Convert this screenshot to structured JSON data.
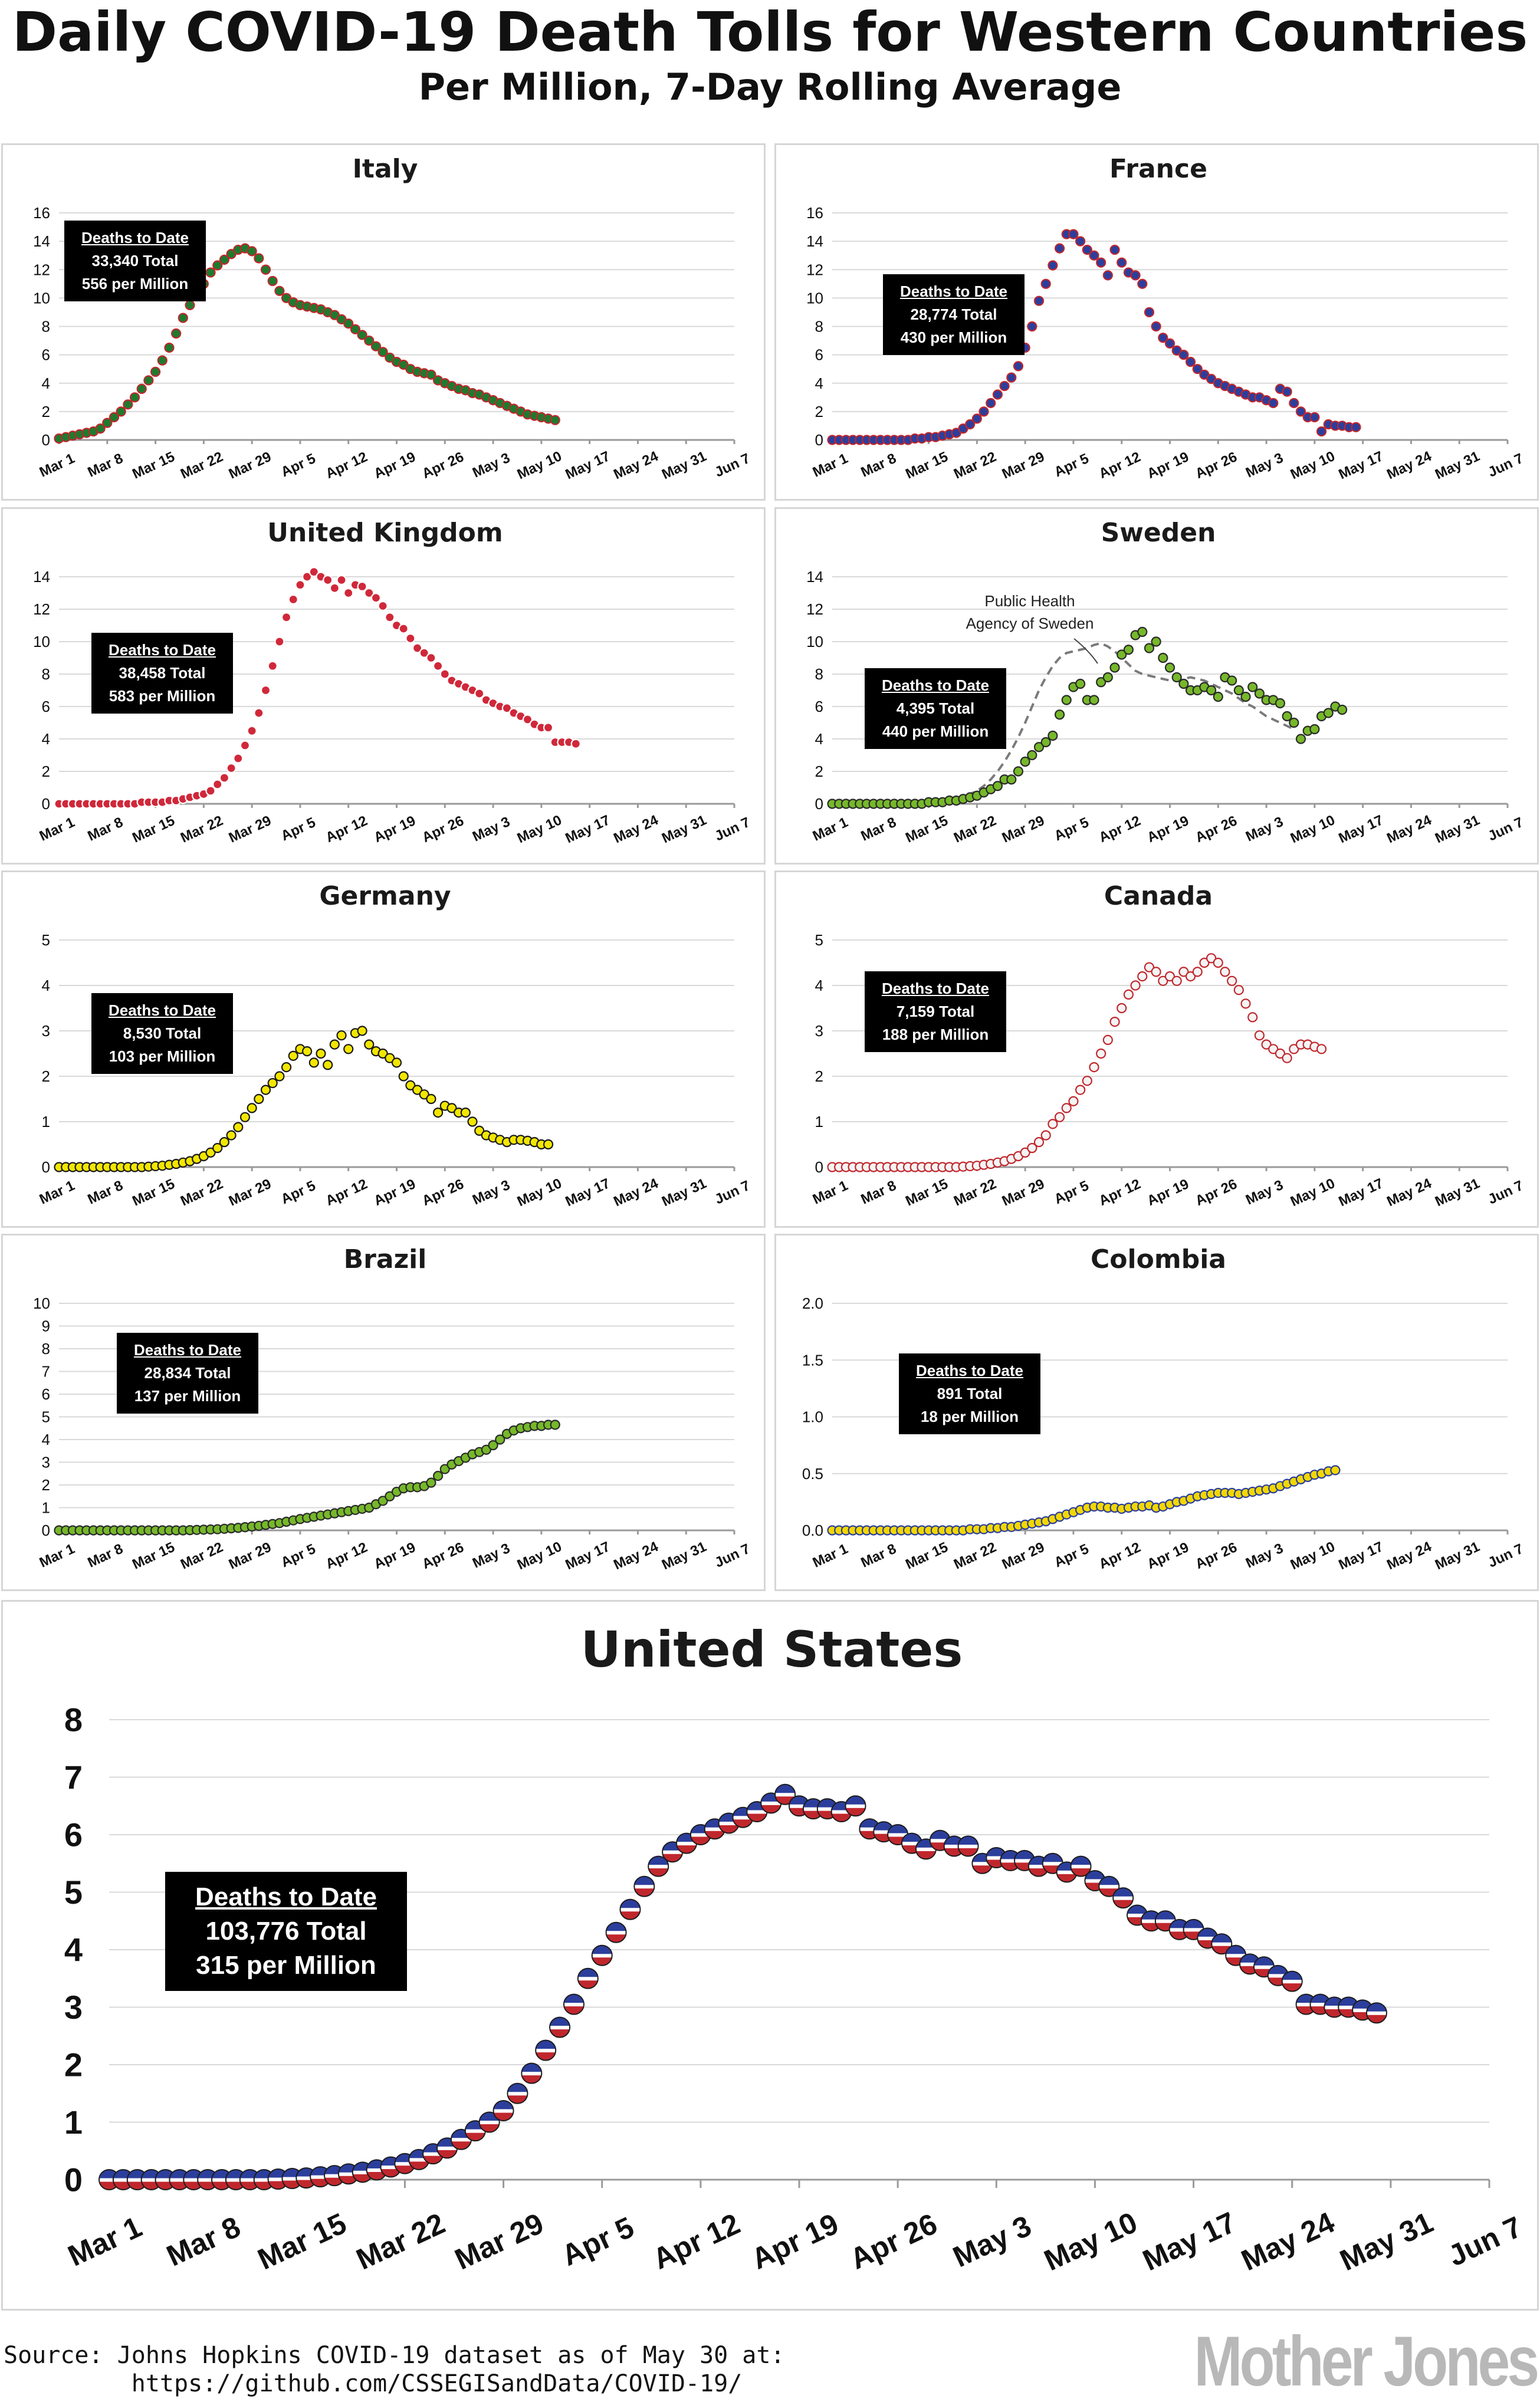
{
  "title": "Daily COVID-19 Death Tolls for Western Countries",
  "subtitle": "Per Million, 7-Day Rolling Average",
  "source_line1": "Source: Johns Hopkins COVID-19 dataset as of May 30 at:",
  "source_line2": "https://github.com/CSSEGISandData/COVID-19/",
  "logo": "Mother Jones",
  "x_tick_labels": [
    "Mar 1",
    "Mar 8",
    "Mar 15",
    "Mar 22",
    "Mar 29",
    "Apr 5",
    "Apr 12",
    "Apr 19",
    "Apr 26",
    "May 3",
    "May 10",
    "May 17",
    "May 24",
    "May 31",
    "Jun 7"
  ],
  "chart_data": [
    {
      "type": "scatter",
      "country": "Italy",
      "title": "Italy",
      "ylim": [
        0,
        16
      ],
      "yticks": [
        0,
        2,
        4,
        6,
        8,
        10,
        12,
        14,
        16
      ],
      "stats_heading": "Deaths to Date",
      "stats_total": "33,340 Total",
      "stats_per_million": "556 per Million",
      "colors": {
        "fill": "#1e7a2e",
        "edge": "#c0272d"
      },
      "x_start": "Mar 1",
      "day_step": 1,
      "series_values": [
        0.1,
        0.2,
        0.3,
        0.4,
        0.5,
        0.6,
        0.8,
        1.2,
        1.6,
        2.0,
        2.5,
        3.0,
        3.6,
        4.2,
        4.8,
        5.6,
        6.5,
        7.5,
        8.6,
        9.5,
        10.3,
        11.0,
        11.8,
        12.3,
        12.7,
        13.1,
        13.4,
        13.5,
        13.3,
        12.8,
        12.0,
        11.2,
        10.5,
        10.0,
        9.7,
        9.5,
        9.4,
        9.3,
        9.2,
        9.0,
        8.8,
        8.5,
        8.2,
        7.8,
        7.4,
        7.0,
        6.6,
        6.2,
        5.8,
        5.5,
        5.3,
        5.0,
        4.8,
        4.7,
        4.6,
        4.2,
        4.0,
        3.8,
        3.6,
        3.5,
        3.3,
        3.2,
        3.0,
        2.8,
        2.6,
        2.4,
        2.2,
        2.0,
        1.8,
        1.7,
        1.6,
        1.5,
        1.4
      ]
    },
    {
      "type": "scatter",
      "country": "France",
      "title": "France",
      "ylim": [
        0,
        16
      ],
      "yticks": [
        0,
        2,
        4,
        6,
        8,
        10,
        12,
        14,
        16
      ],
      "stats_heading": "Deaths to Date",
      "stats_total": "28,774 Total",
      "stats_per_million": "430 per Million",
      "colors": {
        "fill": "#2c3e9c",
        "edge": "#c0272d"
      },
      "x_start": "Mar 1",
      "day_step": 1,
      "series_values": [
        0,
        0,
        0,
        0,
        0,
        0,
        0,
        0,
        0,
        0,
        0,
        0,
        0.1,
        0.1,
        0.2,
        0.2,
        0.3,
        0.4,
        0.5,
        0.8,
        1.1,
        1.5,
        2.0,
        2.6,
        3.2,
        3.8,
        4.4,
        5.2,
        6.5,
        8.0,
        9.8,
        11.0,
        12.3,
        13.5,
        14.5,
        14.5,
        14.0,
        13.4,
        13.0,
        12.5,
        11.6,
        13.4,
        12.5,
        11.8,
        11.6,
        11.0,
        9.0,
        8.0,
        7.2,
        6.8,
        6.3,
        6.0,
        5.5,
        5.0,
        4.6,
        4.3,
        4.0,
        3.8,
        3.6,
        3.4,
        3.2,
        3.0,
        3.0,
        2.8,
        2.6,
        3.6,
        3.4,
        2.6,
        2.0,
        1.6,
        1.6,
        0.6,
        1.1,
        1.0,
        1.0,
        0.9,
        0.9
      ]
    },
    {
      "type": "scatter",
      "country": "United Kingdom",
      "title": "United Kingdom",
      "ylim": [
        0,
        14
      ],
      "yticks": [
        0,
        2,
        4,
        6,
        8,
        10,
        12,
        14
      ],
      "stats_heading": "Deaths to Date",
      "stats_total": "38,458 Total",
      "stats_per_million": "583 per Million",
      "colors": {
        "fill": "#d0283a",
        "edge": "#ffffff"
      },
      "x_start": "Mar 1",
      "day_step": 1,
      "series_values": [
        0,
        0,
        0,
        0,
        0,
        0,
        0,
        0,
        0,
        0,
        0,
        0,
        0.1,
        0.1,
        0.1,
        0.1,
        0.2,
        0.2,
        0.3,
        0.4,
        0.5,
        0.6,
        0.8,
        1.2,
        1.6,
        2.2,
        2.8,
        3.6,
        4.5,
        5.6,
        7.0,
        8.5,
        10.0,
        11.5,
        12.6,
        13.5,
        14.0,
        14.3,
        14.0,
        13.8,
        13.3,
        13.8,
        13.0,
        13.5,
        13.4,
        13.0,
        12.7,
        12.2,
        11.5,
        11.0,
        10.8,
        10.2,
        9.6,
        9.3,
        9.0,
        8.5,
        8.0,
        7.6,
        7.4,
        7.2,
        7.0,
        6.8,
        6.4,
        6.2,
        6.0,
        5.9,
        5.6,
        5.4,
        5.2,
        4.9,
        4.7,
        4.7,
        3.8,
        3.8,
        3.8,
        3.7
      ]
    },
    {
      "type": "scatter",
      "country": "Sweden",
      "title": "Sweden",
      "ylim": [
        0,
        14
      ],
      "yticks": [
        0,
        2,
        4,
        6,
        8,
        10,
        12,
        14
      ],
      "stats_heading": "Deaths to Date",
      "stats_total": "4,395 Total",
      "stats_per_million": "440 per Million",
      "annotation": "Public Health Agency of Sweden",
      "annotation_lines": [
        "Public Health",
        "Agency of Sweden"
      ],
      "colors": {
        "fill": "#76b82a",
        "edge": "#2a2a2a",
        "line": "#7a7a7a"
      },
      "x_start": "Mar 1",
      "day_step": 1,
      "series_values": [
        0,
        0,
        0,
        0,
        0,
        0,
        0,
        0,
        0,
        0,
        0,
        0,
        0,
        0,
        0.1,
        0.1,
        0.1,
        0.2,
        0.2,
        0.3,
        0.4,
        0.5,
        0.7,
        0.9,
        1.1,
        1.5,
        1.5,
        2.0,
        2.6,
        3.0,
        3.5,
        3.8,
        4.2,
        5.5,
        6.4,
        7.2,
        7.4,
        6.4,
        6.4,
        7.5,
        7.8,
        8.4,
        9.2,
        9.5,
        10.4,
        10.6,
        9.6,
        10.0,
        9.0,
        8.4,
        7.8,
        7.4,
        7.0,
        7.0,
        7.2,
        7.0,
        6.6,
        7.8,
        7.6,
        7.0,
        6.6,
        7.2,
        6.8,
        6.4,
        6.4,
        6.2,
        5.4,
        5.0,
        4.0,
        4.5,
        4.6,
        5.4,
        5.6,
        6.0,
        5.8
      ],
      "line_values": [
        0,
        0,
        0,
        0,
        0,
        0,
        0,
        0,
        0,
        0,
        0,
        0,
        0,
        0,
        0,
        0.1,
        0.1,
        0.2,
        0.3,
        0.4,
        0.6,
        0.8,
        1.1,
        1.5,
        2.0,
        2.6,
        3.3,
        4.1,
        5.0,
        6.0,
        7.0,
        7.8,
        8.5,
        9.0,
        9.3,
        9.4,
        9.5,
        9.6,
        9.8,
        9.9,
        9.7,
        9.4,
        9.0,
        8.6,
        8.2,
        8.0,
        7.9,
        7.8,
        7.7,
        7.6,
        7.6,
        7.7,
        7.8,
        7.7,
        7.6,
        7.4,
        7.2,
        7.0,
        6.8,
        6.5,
        6.2,
        6.0,
        5.7,
        5.4,
        5.2,
        5.0,
        4.8,
        4.6
      ]
    },
    {
      "type": "scatter",
      "country": "Germany",
      "title": "Germany",
      "ylim": [
        0,
        5
      ],
      "yticks": [
        0,
        1,
        2,
        3,
        4,
        5
      ],
      "stats_heading": "Deaths to Date",
      "stats_total": "8,530 Total",
      "stats_per_million": "103 per Million",
      "colors": {
        "fill": "#f2e600",
        "edge": "#1a1a1a"
      },
      "x_start": "Mar 1",
      "day_step": 1,
      "series_values": [
        0,
        0,
        0,
        0,
        0,
        0,
        0,
        0,
        0,
        0,
        0,
        0,
        0,
        0.01,
        0.02,
        0.03,
        0.05,
        0.07,
        0.1,
        0.13,
        0.18,
        0.24,
        0.32,
        0.42,
        0.55,
        0.7,
        0.88,
        1.1,
        1.3,
        1.5,
        1.7,
        1.85,
        2.0,
        2.2,
        2.45,
        2.6,
        2.55,
        2.3,
        2.5,
        2.25,
        2.7,
        2.9,
        2.6,
        2.95,
        3.0,
        2.7,
        2.55,
        2.5,
        2.4,
        2.3,
        2.0,
        1.8,
        1.7,
        1.6,
        1.5,
        1.2,
        1.35,
        1.3,
        1.2,
        1.2,
        1.0,
        0.8,
        0.7,
        0.65,
        0.6,
        0.55,
        0.6,
        0.6,
        0.58,
        0.55,
        0.5,
        0.5
      ]
    },
    {
      "type": "scatter",
      "country": "Canada",
      "title": "Canada",
      "ylim": [
        0,
        5
      ],
      "yticks": [
        0,
        1,
        2,
        3,
        4,
        5
      ],
      "stats_heading": "Deaths to Date",
      "stats_total": "7,159 Total",
      "stats_per_million": "188 per Million",
      "colors": {
        "fill": "#f4f4f4",
        "edge": "#c0272d"
      },
      "x_start": "Mar 1",
      "day_step": 1,
      "series_values": [
        0,
        0,
        0,
        0,
        0,
        0,
        0,
        0,
        0,
        0,
        0,
        0,
        0,
        0,
        0,
        0,
        0,
        0,
        0,
        0.01,
        0.02,
        0.03,
        0.05,
        0.07,
        0.1,
        0.13,
        0.18,
        0.24,
        0.32,
        0.42,
        0.55,
        0.7,
        0.95,
        1.1,
        1.3,
        1.45,
        1.7,
        1.9,
        2.2,
        2.5,
        2.8,
        3.2,
        3.5,
        3.8,
        4.0,
        4.2,
        4.4,
        4.3,
        4.1,
        4.2,
        4.1,
        4.3,
        4.2,
        4.3,
        4.5,
        4.6,
        4.5,
        4.3,
        4.1,
        3.9,
        3.6,
        3.3,
        2.9,
        2.7,
        2.6,
        2.5,
        2.4,
        2.6,
        2.7,
        2.7,
        2.65,
        2.6
      ]
    },
    {
      "type": "scatter",
      "country": "Brazil",
      "title": "Brazil",
      "ylim": [
        0,
        10
      ],
      "yticks": [
        0,
        1,
        2,
        3,
        4,
        5,
        6,
        7,
        8,
        9,
        10
      ],
      "stats_heading": "Deaths to Date",
      "stats_total": "28,834 Total",
      "stats_per_million": "137 per Million",
      "colors": {
        "fill": "#76b82a",
        "edge": "#2a2a2a"
      },
      "x_start": "Mar 1",
      "day_step": 1,
      "series_values": [
        0,
        0,
        0,
        0,
        0,
        0,
        0,
        0,
        0,
        0,
        0,
        0,
        0,
        0,
        0,
        0,
        0,
        0,
        0,
        0.01,
        0.02,
        0.03,
        0.04,
        0.05,
        0.07,
        0.09,
        0.11,
        0.14,
        0.17,
        0.2,
        0.24,
        0.28,
        0.32,
        0.38,
        0.44,
        0.5,
        0.55,
        0.6,
        0.65,
        0.7,
        0.75,
        0.8,
        0.85,
        0.9,
        0.95,
        1.0,
        1.15,
        1.3,
        1.5,
        1.7,
        1.85,
        1.9,
        1.9,
        1.95,
        2.1,
        2.4,
        2.7,
        2.9,
        3.05,
        3.2,
        3.35,
        3.45,
        3.55,
        3.75,
        4.0,
        4.25,
        4.4,
        4.5,
        4.55,
        4.6,
        4.6,
        4.65,
        4.65
      ]
    },
    {
      "type": "scatter",
      "country": "Colombia",
      "title": "Colombia",
      "ylim": [
        0,
        2
      ],
      "yticks": [
        0.0,
        0.5,
        1.0,
        1.5,
        2.0
      ],
      "stats_heading": "Deaths to Date",
      "stats_total": "891 Total",
      "stats_per_million": "18 per Million",
      "colors": {
        "fill": "#f2d700",
        "edge": "#2c3e9c",
        "line": "#c0272d"
      },
      "x_start": "Mar 1",
      "day_step": 1,
      "series_values": [
        0,
        0,
        0,
        0,
        0,
        0,
        0,
        0,
        0,
        0,
        0,
        0,
        0,
        0,
        0,
        0,
        0,
        0,
        0,
        0,
        0.01,
        0.01,
        0.01,
        0.02,
        0.02,
        0.03,
        0.03,
        0.04,
        0.05,
        0.06,
        0.07,
        0.08,
        0.1,
        0.12,
        0.14,
        0.16,
        0.18,
        0.2,
        0.21,
        0.21,
        0.2,
        0.2,
        0.19,
        0.2,
        0.21,
        0.21,
        0.22,
        0.2,
        0.21,
        0.23,
        0.25,
        0.26,
        0.28,
        0.3,
        0.31,
        0.32,
        0.33,
        0.33,
        0.33,
        0.32,
        0.33,
        0.34,
        0.35,
        0.36,
        0.37,
        0.39,
        0.41,
        0.43,
        0.45,
        0.47,
        0.49,
        0.5,
        0.52,
        0.53
      ]
    },
    {
      "type": "scatter",
      "country": "United States",
      "title": "United States",
      "ylim": [
        0,
        8
      ],
      "yticks": [
        0,
        1,
        2,
        3,
        4,
        5,
        6,
        7,
        8
      ],
      "stats_heading": "Deaths to Date",
      "stats_total": "103,776 Total",
      "stats_per_million": "315 per Million",
      "colors": {
        "top": "#2c3e9c",
        "bottom": "#c0272d",
        "band": "#ffffff"
      },
      "x_start": "Mar 1",
      "day_step": 1,
      "series_values": [
        0,
        0,
        0,
        0,
        0,
        0,
        0,
        0,
        0,
        0,
        0,
        0,
        0.01,
        0.02,
        0.03,
        0.05,
        0.07,
        0.1,
        0.13,
        0.17,
        0.22,
        0.28,
        0.35,
        0.45,
        0.55,
        0.7,
        0.85,
        1.0,
        1.2,
        1.5,
        1.85,
        2.25,
        2.65,
        3.05,
        3.5,
        3.9,
        4.3,
        4.7,
        5.1,
        5.45,
        5.7,
        5.85,
        6.0,
        6.1,
        6.2,
        6.3,
        6.4,
        6.55,
        6.7,
        6.5,
        6.45,
        6.45,
        6.4,
        6.5,
        6.1,
        6.05,
        6.0,
        5.85,
        5.75,
        5.9,
        5.8,
        5.8,
        5.5,
        5.6,
        5.55,
        5.55,
        5.45,
        5.5,
        5.35,
        5.45,
        5.2,
        5.1,
        4.9,
        4.6,
        4.5,
        4.5,
        4.35,
        4.35,
        4.2,
        4.1,
        3.9,
        3.75,
        3.7,
        3.55,
        3.45,
        3.05,
        3.05,
        3.0,
        3.0,
        2.95,
        2.9
      ]
    }
  ]
}
